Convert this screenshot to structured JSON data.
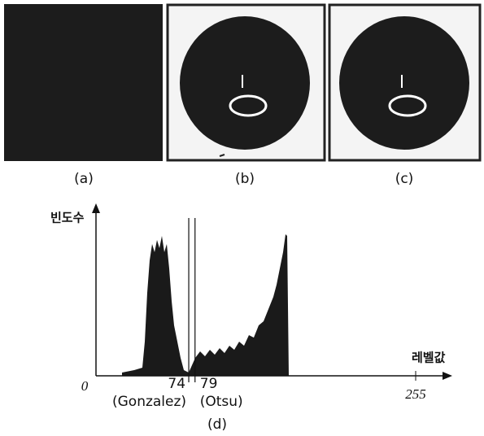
{
  "figures": [
    {
      "label": "(a)"
    },
    {
      "label": "(b)"
    },
    {
      "label": "(c)"
    }
  ],
  "histogram": {
    "label": "(d)",
    "y_axis_label": "빈도수",
    "x_axis_label": "레벨값",
    "xticks": [
      0,
      74,
      79,
      255
    ],
    "threshold_names": [
      "(Gonzalez)",
      "(Otsu)"
    ]
  }
}
